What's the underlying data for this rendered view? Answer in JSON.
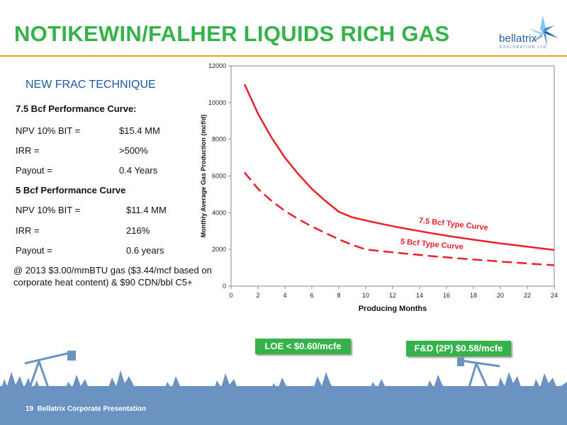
{
  "header": {
    "title": "NOTIKEWIN/FALHER LIQUIDS RICH GAS",
    "accent_color": "#36b24a",
    "rule_color": "#f0a21c"
  },
  "logo": {
    "name": "bellatrix",
    "subtitle": "EXPLORATION LTD",
    "icon": "star-logo-icon"
  },
  "left": {
    "subtitle": "NEW FRAC TECHNIQUE",
    "curve1": {
      "heading": "7.5 Bcf Performance Curve:",
      "rows": [
        {
          "label": "NPV 10% BIT =",
          "value": "$15.4 MM"
        },
        {
          "label": "IRR =",
          "value": ">500%"
        },
        {
          "label": "Payout =",
          "value": "0.4 Years"
        }
      ]
    },
    "curve2": {
      "heading": "5 Bcf Performance Curve",
      "rows": [
        {
          "label": "NPV 10% BIT =",
          "value": "$11.4 MM"
        },
        {
          "label": "IRR =",
          "value": "216%"
        },
        {
          "label": "Payout =",
          "value": "0.6 years"
        }
      ]
    },
    "note": "@ 2013 $3.00/mmBTU gas ($3.44/mcf based on corporate heat content) & $90 CDN/bbl C5+"
  },
  "badges": {
    "loe": "LOE < $0.60/mcfe",
    "fd": "F&D (2P) $0.58/mcfe"
  },
  "footer": {
    "page": "19",
    "text": "Bellatrix Corporate Presentation"
  },
  "chart_data": {
    "type": "line",
    "xlabel": "Producing Months",
    "ylabel": "Monthly Average Gas Production (mcf/d)",
    "xlim": [
      0,
      24
    ],
    "ylim": [
      0,
      12000
    ],
    "xticks": [
      "0",
      "2",
      "4",
      "6",
      "8",
      "10",
      "12",
      "14",
      "16",
      "18",
      "20",
      "22",
      "24"
    ],
    "yticks": [
      "0",
      "2000",
      "4000",
      "6000",
      "8000",
      "10000",
      "12000"
    ],
    "grid": false,
    "series": [
      {
        "name": "7.5 Bcf Type Curve",
        "color": "#e8212b",
        "style": "solid",
        "x": [
          1,
          2,
          3,
          4,
          5,
          6,
          7,
          8,
          9,
          10,
          11,
          12,
          13,
          14,
          15,
          16,
          17,
          18,
          19,
          20,
          21,
          22,
          23,
          24
        ],
        "y": [
          11000,
          9400,
          8100,
          7000,
          6100,
          5300,
          4650,
          4050,
          3750,
          3580,
          3420,
          3270,
          3130,
          3000,
          2870,
          2750,
          2640,
          2530,
          2430,
          2330,
          2240,
          2150,
          2060,
          1970
        ]
      },
      {
        "name": "5 Bcf Type Curve",
        "color": "#e8212b",
        "style": "dashed",
        "x": [
          1,
          2,
          3,
          4,
          5,
          6,
          7,
          8,
          9,
          10,
          11,
          12,
          13,
          14,
          15,
          16,
          17,
          18,
          19,
          20,
          21,
          22,
          23,
          24
        ],
        "y": [
          6200,
          5300,
          4650,
          4100,
          3650,
          3250,
          2900,
          2550,
          2250,
          2000,
          1920,
          1840,
          1770,
          1700,
          1630,
          1570,
          1510,
          1450,
          1400,
          1340,
          1290,
          1240,
          1190,
          1140
        ]
      }
    ]
  }
}
